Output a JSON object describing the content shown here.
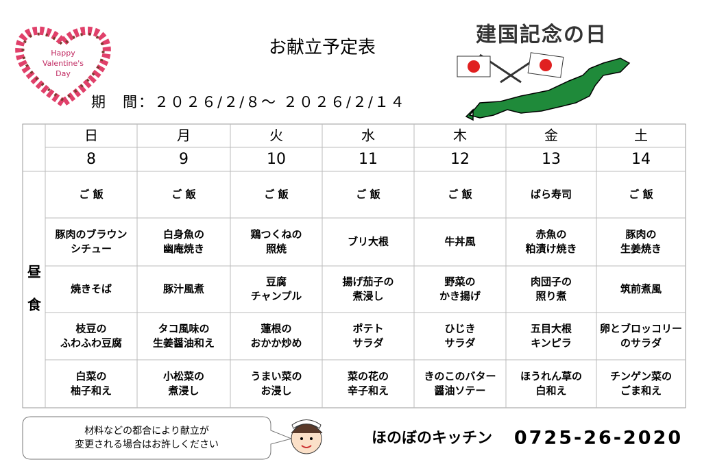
{
  "badge": {
    "lines": [
      "Happy",
      "Valentine's",
      "Day"
    ]
  },
  "header": {
    "title": "お献立予定表",
    "period": "期　間：２０２６/２/８～ ２０２６/２/１４",
    "holiday": "建国記念の日"
  },
  "table": {
    "days": [
      "日",
      "月",
      "火",
      "水",
      "木",
      "金",
      "土"
    ],
    "dates": [
      "8",
      "9",
      "10",
      "11",
      "12",
      "13",
      "14"
    ],
    "meal": [
      "昼",
      "食"
    ],
    "rows": [
      [
        [
          "ご 飯"
        ],
        [
          "ご 飯"
        ],
        [
          "ご 飯"
        ],
        [
          "ご 飯"
        ],
        [
          "ご 飯"
        ],
        [
          "ばら寿司"
        ],
        [
          "ご 飯"
        ]
      ],
      [
        [
          "豚肉のブラウン",
          "シチュー"
        ],
        [
          "白身魚の",
          "幽庵焼き"
        ],
        [
          "鶏つくねの",
          "照焼"
        ],
        [
          "ブリ大根"
        ],
        [
          "牛丼風"
        ],
        [
          "赤魚の",
          "粕漬け焼き"
        ],
        [
          "豚肉の",
          "生姜焼き"
        ]
      ],
      [
        [
          "焼きそば"
        ],
        [
          "豚汁風煮"
        ],
        [
          "豆腐",
          "チャンプル"
        ],
        [
          "揚げ茄子の",
          "煮浸し"
        ],
        [
          "野菜の",
          "かき揚げ"
        ],
        [
          "肉団子の",
          "照り煮"
        ],
        [
          "筑前煮風"
        ]
      ],
      [
        [
          "枝豆の",
          "ふわふわ豆腐"
        ],
        [
          "タコ風味の",
          "生姜醤油和え"
        ],
        [
          "蓮根の",
          "おかか炒め"
        ],
        [
          "ポテト",
          "サラダ"
        ],
        [
          "ひじき",
          "サラダ"
        ],
        [
          "五目大根",
          "キンピラ"
        ],
        [
          "卵とブロッコリー",
          "のサラダ"
        ]
      ],
      [
        [
          "白菜の",
          "柚子和え"
        ],
        [
          "小松菜の",
          "煮浸し"
        ],
        [
          "うまい菜の",
          "お浸し"
        ],
        [
          "菜の花の",
          "辛子和え"
        ],
        [
          "きのこのバター",
          "醤油ソテー"
        ],
        [
          "ほうれん草の",
          "白和え"
        ],
        [
          "チンゲン菜の",
          "ごま和え"
        ]
      ]
    ]
  },
  "footer": {
    "note": [
      "材料などの都合により献立が",
      "変更される場合はお許しください"
    ],
    "kitchen": "ほのぼのキッチン",
    "phone": "0725-26-2020"
  }
}
